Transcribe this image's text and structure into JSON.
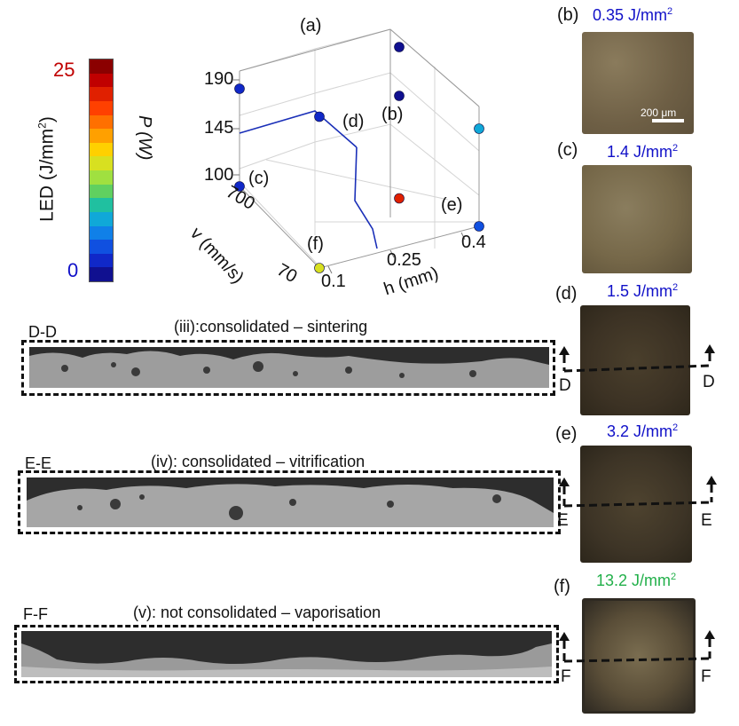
{
  "colorbar": {
    "label": "LED (J/mm",
    "label_sup": "2",
    "label_end": ")",
    "max": "25",
    "min": "0",
    "max_color": "#c00000",
    "min_color": "#1010c8",
    "colors": [
      "#8b0000",
      "#c00000",
      "#e02000",
      "#ff4000",
      "#ff7000",
      "#ffa000",
      "#ffd000",
      "#d8e020",
      "#a0e040",
      "#60d060",
      "#20c0a0",
      "#10a8d8",
      "#1080e8",
      "#1050e0",
      "#1028c8",
      "#101090"
    ]
  },
  "plot": {
    "panel_label": "(a)",
    "z_axis_label": "P (W)",
    "z_ticks": [
      "190",
      "145",
      "100"
    ],
    "v_axis_label": "v (mm/s)",
    "v_ticks": [
      "700",
      "70"
    ],
    "h_axis_label": "h (mm)",
    "h_ticks": [
      "0.1",
      "0.25",
      "0.4"
    ],
    "point_labels": [
      "(b)",
      "(c)",
      "(d)",
      "(e)",
      "(f)"
    ]
  },
  "chart_data": {
    "type": "scatter3d",
    "title": "(a)",
    "axes": {
      "x": "h (mm)",
      "y": "v (mm/s)",
      "z": "P (W)"
    },
    "x_ticks": [
      0.1,
      0.25,
      0.4
    ],
    "y_ticks": [
      70,
      700
    ],
    "z_ticks": [
      100,
      145,
      190
    ],
    "points": [
      {
        "label": "(b)",
        "h": 0.4,
        "v": 700,
        "P": 145,
        "led": 0.35
      },
      {
        "label": "(c)",
        "h": 0.1,
        "v": 700,
        "P": 100,
        "led": 1.4
      },
      {
        "label": "(d)",
        "h": 0.25,
        "v": 700,
        "P": 145,
        "led": 1.5
      },
      {
        "label": "(e)",
        "h": 0.4,
        "v": 70,
        "P": 100,
        "led": 3.2
      },
      {
        "label": "(f)",
        "h": 0.1,
        "v": 70,
        "P": 100,
        "led": 13.2
      },
      {
        "label": "",
        "h": 0.1,
        "v": 700,
        "P": 190,
        "led": 1.2
      },
      {
        "label": "",
        "h": 0.4,
        "v": 700,
        "P": 190,
        "led": 0.7
      },
      {
        "label": "",
        "h": 0.4,
        "v": 70,
        "P": 190,
        "led": 6.0
      },
      {
        "label": "",
        "h": 0.25,
        "v": 70,
        "P": 145,
        "led": 22.0
      }
    ]
  },
  "samples": [
    {
      "label": "(b)",
      "energy": "0.35 J/mm",
      "energy_color": "#1010c8",
      "scale_bar": "200 μm"
    },
    {
      "label": "(c)",
      "energy": "1.4 J/mm",
      "energy_color": "#1010c8"
    },
    {
      "label": "(d)",
      "energy": "1.5 J/mm",
      "energy_color": "#1010c8",
      "cut": "D"
    },
    {
      "label": "(e)",
      "energy": "3.2 J/mm",
      "energy_color": "#1010c8",
      "cut": "E"
    },
    {
      "label": "(f)",
      "energy": "13.2 J/mm",
      "energy_color": "#22b04a",
      "cut": "F"
    }
  ],
  "energy_unit_sup": "2",
  "sections": [
    {
      "tag": "D-D",
      "title": "(iii):consolidated – sintering"
    },
    {
      "tag": "E-E",
      "title": "(iv): consolidated – vitrification"
    },
    {
      "tag": "F-F",
      "title": "(v): not consolidated – vaporisation"
    }
  ]
}
